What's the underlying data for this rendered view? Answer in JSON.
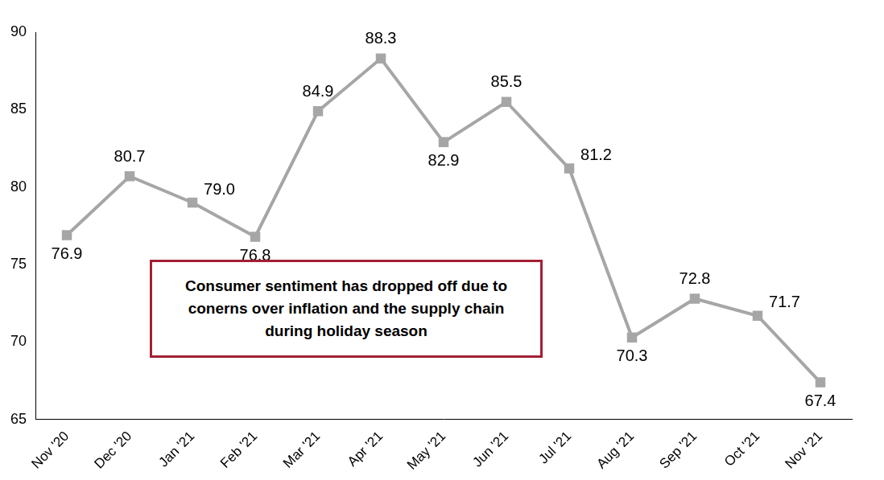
{
  "chart_data": {
    "type": "line",
    "annotation": "Consumer sentiment has dropped off due to conerns over inflation and the supply chain during holiday season",
    "categories": [
      "Nov '20",
      "Dec '20",
      "Jan '21",
      "Feb '21",
      "Mar '21",
      "Apr '21",
      "May '21",
      "Jun '21",
      "Jul '21",
      "Aug '21",
      "Sep '21",
      "Oct '21",
      "Nov '21"
    ],
    "values": [
      76.9,
      80.7,
      79.0,
      76.8,
      84.9,
      88.3,
      82.9,
      85.5,
      81.2,
      70.3,
      72.8,
      71.7,
      67.4
    ],
    "value_labels": [
      "76.9",
      "80.7",
      "79.0",
      "76.8",
      "84.9",
      "88.3",
      "82.9",
      "85.5",
      "81.2",
      "70.3",
      "72.8",
      "71.7",
      "67.4"
    ],
    "color": "#a6a6a6",
    "marker": "square",
    "line_style": "solid",
    "ylim": [
      65,
      90
    ],
    "yticks": [
      65,
      70,
      75,
      80,
      85,
      90
    ],
    "grid": false,
    "data_labels": true
  }
}
